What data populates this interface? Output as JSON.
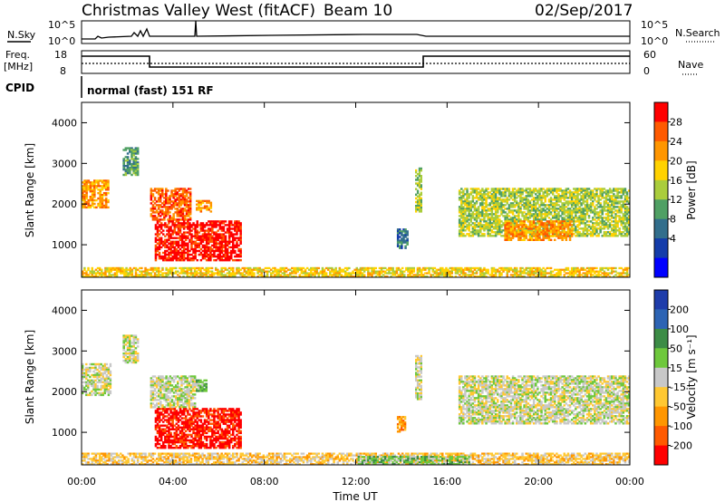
{
  "header": {
    "title": "Christmas Valley West (fitACF)",
    "beam": "Beam 10",
    "date": "02/Sep/2017"
  },
  "top_panels": {
    "nsky_label": "N.Sky",
    "nsky_ticks": [
      "10^5",
      "10^0"
    ],
    "nsearch_label": "N.Search",
    "nsearch_ticks": [
      "10^5",
      "10^0"
    ],
    "freq_label_1": "Freq.",
    "freq_label_2": "[MHz]",
    "freq_ticks": [
      "18",
      "8"
    ],
    "nave_label": "Nave",
    "nave_ticks": [
      "60",
      "0"
    ],
    "cpid_label": "CPID",
    "cpid_value": "normal (fast) 151 RF"
  },
  "chart_data": [
    {
      "type": "heatmap",
      "name": "power",
      "xlabel": "",
      "ylabel": "Slant Range [km]",
      "y_ticks": [
        "1000",
        "2000",
        "3000",
        "4000"
      ],
      "ylim": [
        200,
        4500
      ],
      "xlim": [
        0,
        24
      ],
      "colorbar": {
        "label": "Power [dB]",
        "ticks": [
          "28",
          "24",
          "20",
          "16",
          "12",
          "8",
          "4"
        ],
        "colors": [
          "#ff0000",
          "#ff5a00",
          "#ff9600",
          "#ffd200",
          "#aacd3c",
          "#50a064",
          "#326e8c",
          "#143caa",
          "#0000ff"
        ]
      },
      "regions": [
        {
          "t0": 0.0,
          "t1": 1.2,
          "r0": 1900,
          "r1": 2600,
          "level": 2
        },
        {
          "t0": 1.8,
          "t1": 2.5,
          "r0": 2700,
          "r1": 3400,
          "level": 5
        },
        {
          "t0": 3.0,
          "t1": 4.8,
          "r0": 1600,
          "r1": 2400,
          "level": 1
        },
        {
          "t0": 3.2,
          "t1": 7.0,
          "r0": 600,
          "r1": 1600,
          "level": 0
        },
        {
          "t0": 5.0,
          "t1": 5.7,
          "r0": 1800,
          "r1": 2100,
          "level": 2
        },
        {
          "t0": 13.8,
          "t1": 14.3,
          "r0": 900,
          "r1": 1400,
          "level": 6
        },
        {
          "t0": 14.6,
          "t1": 14.9,
          "r0": 1800,
          "r1": 2900,
          "level": 4
        },
        {
          "t0": 16.5,
          "t1": 24.0,
          "r0": 1200,
          "r1": 2400,
          "level": 4
        },
        {
          "t0": 18.5,
          "t1": 21.5,
          "r0": 1100,
          "r1": 1600,
          "level": 2
        },
        {
          "t0": 0.0,
          "t1": 24.0,
          "r0": 200,
          "r1": 450,
          "level": 3
        }
      ]
    },
    {
      "type": "heatmap",
      "name": "velocity",
      "xlabel": "Time UT",
      "ylabel": "Slant Range [km]",
      "y_ticks": [
        "1000",
        "2000",
        "3000",
        "4000"
      ],
      "ylim": [
        200,
        4500
      ],
      "xlim": [
        0,
        24
      ],
      "x_ticks": [
        "00:00",
        "04:00",
        "08:00",
        "12:00",
        "16:00",
        "20:00",
        "00:00"
      ],
      "colorbar": {
        "label": "Velocity [m s⁻¹]",
        "ticks": [
          "200",
          "100",
          "50",
          "15",
          "-15",
          "-50",
          "-100",
          "-200"
        ],
        "colors": [
          "#1e3caa",
          "#2d64b4",
          "#3c8c46",
          "#6ec83c",
          "#c8c8c8",
          "#ffc832",
          "#ff9600",
          "#ff5a00",
          "#ff0000"
        ]
      },
      "regions": [
        {
          "t0": 0.0,
          "t1": 1.3,
          "r0": 1900,
          "r1": 2700,
          "level": 4
        },
        {
          "t0": 1.8,
          "t1": 2.5,
          "r0": 2700,
          "r1": 3400,
          "level": 4
        },
        {
          "t0": 3.0,
          "t1": 5.0,
          "r0": 1600,
          "r1": 2400,
          "level": 4
        },
        {
          "t0": 3.2,
          "t1": 7.0,
          "r0": 600,
          "r1": 1600,
          "level": 8
        },
        {
          "t0": 5.0,
          "t1": 5.5,
          "r0": 2000,
          "r1": 2300,
          "level": 3
        },
        {
          "t0": 14.6,
          "t1": 14.9,
          "r0": 1800,
          "r1": 2900,
          "level": 4
        },
        {
          "t0": 16.5,
          "t1": 24.0,
          "r0": 1200,
          "r1": 2400,
          "level": 4
        },
        {
          "t0": 13.8,
          "t1": 14.2,
          "r0": 1000,
          "r1": 1400,
          "level": 6
        },
        {
          "t0": 0.0,
          "t1": 24.0,
          "r0": 200,
          "r1": 500,
          "level": 5
        },
        {
          "t0": 12.0,
          "t1": 17.0,
          "r0": 200,
          "r1": 420,
          "level": 3
        }
      ]
    }
  ]
}
